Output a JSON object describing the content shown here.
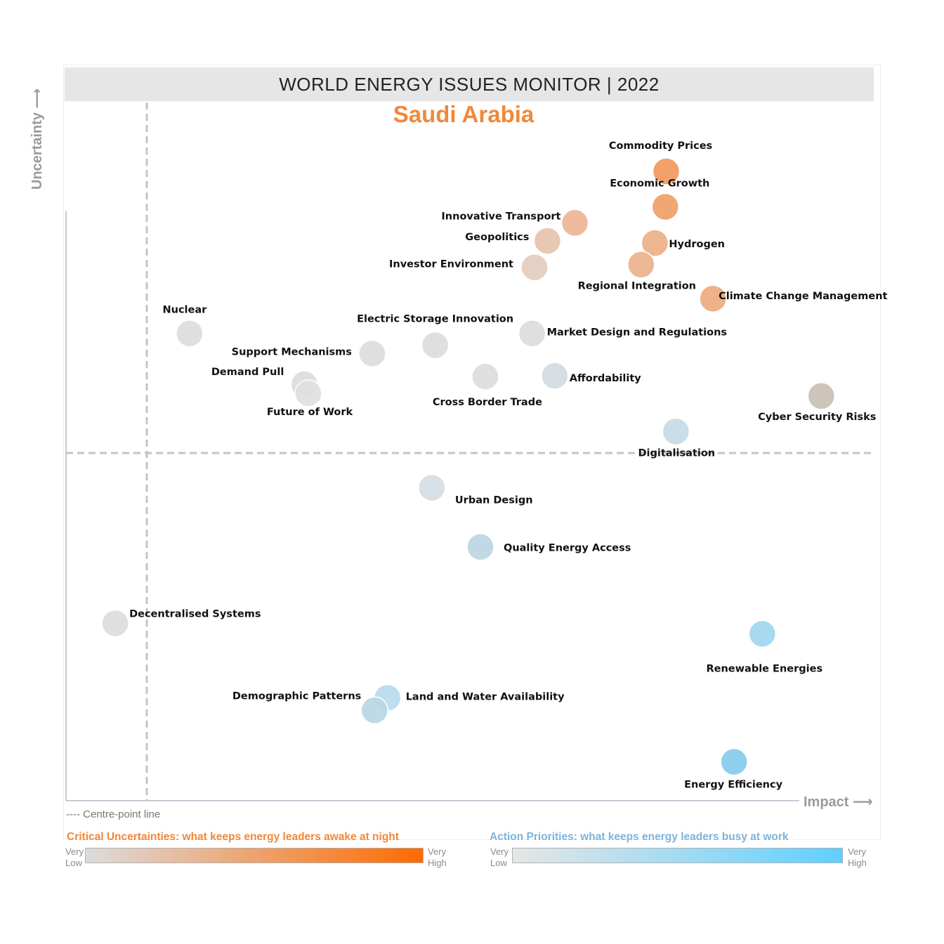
{
  "header": {
    "title": "WORLD ENERGY ISSUES MONITOR | 2022",
    "country": "Saudi Arabia"
  },
  "axes": {
    "y_label": "Uncertainty ⟶",
    "x_label": "Impact ⟶"
  },
  "note": "---- Centre-point line",
  "legend": {
    "critical_uncertainties": {
      "title": "Critical Uncertainties: what keeps energy leaders awake at night",
      "low_top": "Very",
      "low_bottom": "Low",
      "high_top": "Very",
      "high_bottom": "High",
      "color_low": "#dcdcdc",
      "color_high": "#ff6a00"
    },
    "action_priorities": {
      "title": "Action Priorities: what keeps energy leaders busy at work",
      "low_top": "Very",
      "low_bottom": "Low",
      "high_top": "Very",
      "high_bottom": "High",
      "color_low": "#e6e6e6",
      "color_high": "#5fd0ff"
    }
  },
  "chart_data": {
    "type": "scatter",
    "xlim": [
      0,
      100
    ],
    "ylim": [
      0,
      100
    ],
    "centre_point": {
      "x": 10,
      "y": 50
    },
    "points": [
      {
        "name": "Commodity Prices",
        "x": 74.3,
        "y": 90.5,
        "color": "#f0995c"
      },
      {
        "name": "Economic Growth",
        "x": 74.2,
        "y": 85.4,
        "color": "#f0a066"
      },
      {
        "name": "Innovative Transport",
        "x": 63.0,
        "y": 83.1,
        "color": "#ebb594"
      },
      {
        "name": "Hydrogen",
        "x": 72.9,
        "y": 80.2,
        "color": "#ecb086"
      },
      {
        "name": "Geopolitics",
        "x": 59.6,
        "y": 80.5,
        "color": "#e6c3ad"
      },
      {
        "name": "Regional Integration",
        "x": 71.2,
        "y": 77.1,
        "color": "#ebb28a"
      },
      {
        "name": "Investor Environment",
        "x": 58.0,
        "y": 76.7,
        "color": "#e2cdbf"
      },
      {
        "name": "Climate Change Management",
        "x": 80.1,
        "y": 72.2,
        "color": "#eeaa7f"
      },
      {
        "name": "Nuclear",
        "x": 15.3,
        "y": 67.2,
        "color": "#dcdcdc"
      },
      {
        "name": "Electric Storage Innovation",
        "x": 45.7,
        "y": 65.5,
        "color": "#dcdcdc"
      },
      {
        "name": "Market Design and Regulations",
        "x": 57.7,
        "y": 67.2,
        "color": "#dcdcdc"
      },
      {
        "name": "Support Mechanisms",
        "x": 37.9,
        "y": 64.3,
        "color": "#dcdcdc"
      },
      {
        "name": "Demand Pull",
        "x": 29.5,
        "y": 59.9,
        "color": "#dcdcdc"
      },
      {
        "name": "Future of Work",
        "x": 30.0,
        "y": 58.6,
        "color": "#e0e0e0"
      },
      {
        "name": "Cross Border Trade",
        "x": 51.9,
        "y": 61.0,
        "color": "#dcdcdc"
      },
      {
        "name": "Affordability",
        "x": 60.5,
        "y": 61.1,
        "color": "#d2dbe2"
      },
      {
        "name": "Cyber Security Risks",
        "x": 93.5,
        "y": 58.2,
        "color": "#c9bfb4"
      },
      {
        "name": "Digitalisation",
        "x": 75.5,
        "y": 53.1,
        "color": "#c5dae6"
      },
      {
        "name": "Urban Design",
        "x": 45.3,
        "y": 45.0,
        "color": "#d5dde4"
      },
      {
        "name": "Quality Energy Access",
        "x": 51.3,
        "y": 36.5,
        "color": "#bcd6e3"
      },
      {
        "name": "Decentralised Systems",
        "x": 6.1,
        "y": 25.5,
        "color": "#dcdcdc"
      },
      {
        "name": "Renewable Energies",
        "x": 86.2,
        "y": 24.0,
        "color": "#9fd6ef"
      },
      {
        "name": "Land and Water Availability",
        "x": 39.8,
        "y": 14.8,
        "color": "#b8dbeb"
      },
      {
        "name": "Demographic Patterns",
        "x": 38.2,
        "y": 13.0,
        "color": "#b9d6e6"
      },
      {
        "name": "Energy Efficiency",
        "x": 82.7,
        "y": 5.6,
        "color": "#86cbe9"
      }
    ]
  }
}
